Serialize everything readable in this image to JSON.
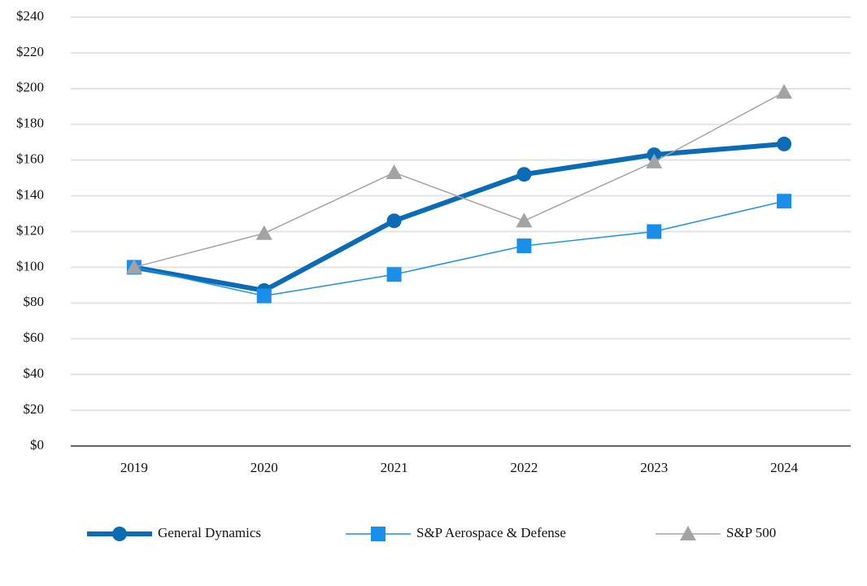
{
  "chart_data": {
    "type": "line",
    "categories": [
      "2019",
      "2020",
      "2021",
      "2022",
      "2023",
      "2024"
    ],
    "series": [
      {
        "name": "General Dynamics",
        "color": "#0b6cb5",
        "marker": "circle",
        "width": 6,
        "values": [
          100,
          87,
          126,
          152,
          163,
          169
        ]
      },
      {
        "name": "S&P Aerospace & Defense",
        "color": "#1a8fea",
        "marker": "square",
        "width": 1.5,
        "values": [
          100,
          84,
          96,
          112,
          120,
          137
        ]
      },
      {
        "name": "S&P 500",
        "color": "#a3a3a3",
        "marker": "triangle",
        "width": 1.5,
        "values": [
          100,
          119,
          153,
          126,
          159,
          198
        ]
      }
    ],
    "ylim": [
      0,
      240
    ],
    "yticks": [
      {
        "value": 0,
        "label": "$0"
      },
      {
        "value": 20,
        "label": "$20"
      },
      {
        "value": 40,
        "label": "$40"
      },
      {
        "value": 60,
        "label": "$60"
      },
      {
        "value": 80,
        "label": "$80"
      },
      {
        "value": 100,
        "label": "$100"
      },
      {
        "value": 120,
        "label": "$120"
      },
      {
        "value": 140,
        "label": "$140"
      },
      {
        "value": 160,
        "label": "$160"
      },
      {
        "value": 180,
        "label": "$180"
      },
      {
        "value": 200,
        "label": "$200"
      },
      {
        "value": 220,
        "label": "$220"
      },
      {
        "value": 240,
        "label": "$240"
      }
    ],
    "grid": true,
    "legend": "bottom"
  }
}
